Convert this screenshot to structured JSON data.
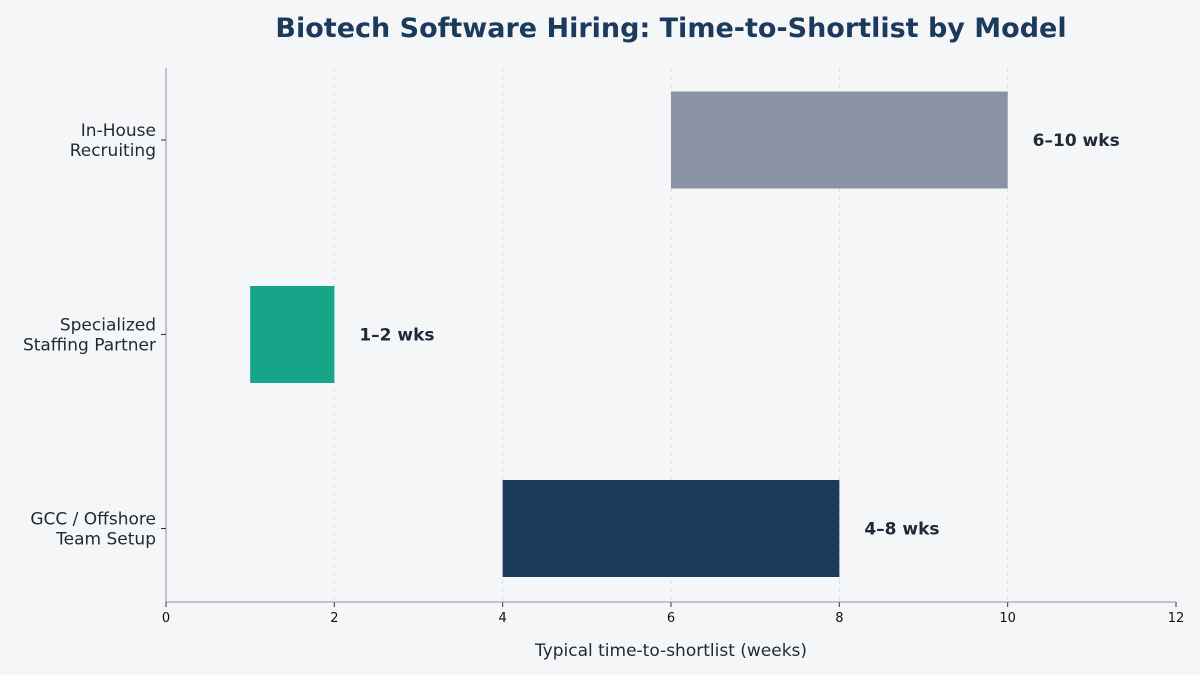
{
  "chart_data": {
    "type": "bar",
    "orientation": "horizontal",
    "title": "Biotech Software Hiring: Time-to-Shortlist by Model",
    "xlabel": "Typical time-to-shortlist (weeks)",
    "ylabel": "",
    "xlim": [
      0,
      12
    ],
    "xticks": [
      0,
      2,
      4,
      6,
      8,
      10,
      12
    ],
    "grid": true,
    "legend": "none",
    "bars": [
      {
        "category": [
          "In-House",
          "Recruiting"
        ],
        "start": 6,
        "end": 10,
        "label": "6–10 wks",
        "color": "#8a93a6"
      },
      {
        "category": [
          "Specialized",
          "Staffing Partner"
        ],
        "start": 1,
        "end": 2,
        "label": "1–2 wks",
        "color": "#17a589"
      },
      {
        "category": [
          "GCC / Offshore",
          "Team Setup"
        ],
        "start": 4,
        "end": 8,
        "label": "4–8 wks",
        "color": "#1b3a5c"
      }
    ]
  }
}
